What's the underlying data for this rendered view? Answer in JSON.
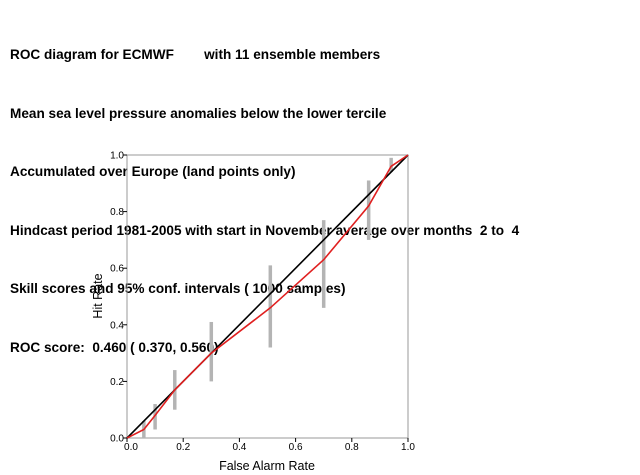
{
  "header": {
    "lines": [
      "ROC diagram for ECMWF        with 11 ensemble members",
      "Mean sea level pressure anomalies below the lower tercile",
      "Accumulated over Europe (land points only)",
      "Hindcast period 1981-2005 with start in November average over months  2 to  4",
      "Skill scores and 95% conf. intervals ( 1000 samples)",
      "ROC score:  0.460 ( 0.370, 0.560)"
    ]
  },
  "chart_data": {
    "type": "line",
    "xlabel": "False Alarm Rate",
    "ylabel": "Hit Rate",
    "xlim": [
      0,
      1
    ],
    "ylim": [
      0,
      1
    ],
    "x_ticks": [
      "0.0",
      "0.2",
      "0.4",
      "0.6",
      "0.8",
      "1.0"
    ],
    "y_ticks": [
      "0.0",
      "0.2",
      "0.4",
      "0.6",
      "0.8",
      "1.0"
    ],
    "grid": false,
    "colors": {
      "diagonal": "#000000",
      "roc": "#e02020",
      "intervals": "#b4b4b4"
    },
    "diagonal": {
      "x": [
        0,
        1
      ],
      "y": [
        0,
        1
      ]
    },
    "series": [
      {
        "x": [
          0.0,
          0.06,
          0.1,
          0.17,
          0.3,
          0.51,
          0.7,
          0.86,
          0.94,
          1.0
        ],
        "y": [
          0.0,
          0.03,
          0.08,
          0.17,
          0.3,
          0.46,
          0.63,
          0.82,
          0.96,
          1.0
        ]
      }
    ],
    "intervals": [
      {
        "x": 0.06,
        "low": 0.0,
        "high": 0.06
      },
      {
        "x": 0.1,
        "low": 0.03,
        "high": 0.12
      },
      {
        "x": 0.17,
        "low": 0.1,
        "high": 0.24
      },
      {
        "x": 0.3,
        "low": 0.2,
        "high": 0.41
      },
      {
        "x": 0.51,
        "low": 0.32,
        "high": 0.61
      },
      {
        "x": 0.7,
        "low": 0.46,
        "high": 0.77
      },
      {
        "x": 0.86,
        "low": 0.7,
        "high": 0.91
      },
      {
        "x": 0.94,
        "low": 0.94,
        "high": 0.99
      }
    ]
  }
}
